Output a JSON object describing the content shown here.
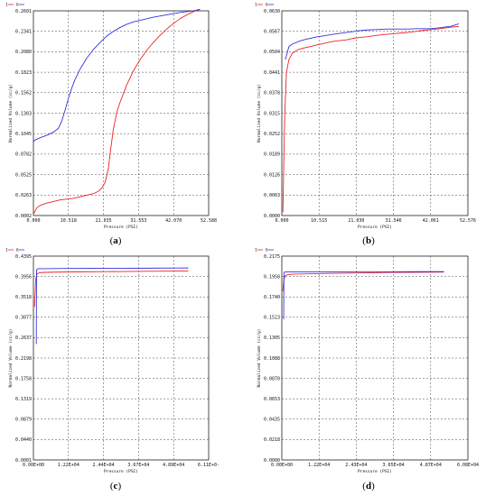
{
  "chart_data": [
    {
      "type": "line",
      "caption": "(a)",
      "xlabel": "Pressure (PSI)",
      "ylabel": "Normalized Volume (cc/g)",
      "xticks": [
        "0.000",
        "10.518",
        "21.035",
        "31.553",
        "42.070",
        "52.588"
      ],
      "yticks": [
        "0.0002",
        "0.0263",
        "0.0525",
        "0.0782",
        "0.1045",
        "0.1303",
        "0.1562",
        "0.1823",
        "0.2080",
        "0.2341",
        "0.2601"
      ],
      "xlim": [
        0,
        52.588
      ],
      "ylim": [
        0.0002,
        0.2601
      ],
      "legend": [
        "1",
        "6"
      ],
      "series": [
        {
          "name": "1",
          "color": "#ee2222",
          "x": [
            0,
            1,
            2,
            4,
            6,
            8,
            10,
            12,
            14,
            16,
            18,
            19.5,
            20.5,
            21.5,
            22.5,
            23.2,
            24,
            25,
            26,
            27,
            28,
            30,
            32,
            34,
            36,
            38,
            40,
            42,
            44,
            46,
            48,
            50
          ],
          "y": [
            0.002,
            0.01,
            0.013,
            0.016,
            0.018,
            0.02,
            0.021,
            0.022,
            0.024,
            0.026,
            0.028,
            0.031,
            0.035,
            0.042,
            0.06,
            0.085,
            0.11,
            0.131,
            0.144,
            0.155,
            0.166,
            0.184,
            0.198,
            0.21,
            0.22,
            0.229,
            0.237,
            0.244,
            0.25,
            0.255,
            0.259,
            0.262
          ]
        },
        {
          "name": "6",
          "color": "#3333dd",
          "x": [
            0,
            0.5,
            2,
            4,
            6,
            7.5,
            8.5,
            9.5,
            10.5,
            11.5,
            12.5,
            14,
            16,
            18,
            20,
            22,
            24,
            26,
            28,
            30,
            33,
            36,
            40,
            44,
            48,
            50
          ],
          "y": [
            0.094,
            0.096,
            0.099,
            0.102,
            0.106,
            0.111,
            0.12,
            0.134,
            0.149,
            0.162,
            0.173,
            0.186,
            0.2,
            0.211,
            0.22,
            0.228,
            0.234,
            0.239,
            0.243,
            0.246,
            0.249,
            0.252,
            0.255,
            0.258,
            0.26,
            0.262
          ]
        }
      ]
    },
    {
      "type": "line",
      "caption": "(b)",
      "xlabel": "Pressure (PSI)",
      "ylabel": "Normalized Volume (cc/g)",
      "xticks": [
        "0.000",
        "10.515",
        "21.030",
        "31.546",
        "42.061",
        "52.576"
      ],
      "yticks": [
        "0.0000",
        "0.0063",
        "0.0126",
        "0.0189",
        "0.0252",
        "0.0315",
        "0.0378",
        "0.0441",
        "0.0504",
        "0.0567",
        "0.0630"
      ],
      "xlim": [
        0,
        52.576
      ],
      "ylim": [
        0,
        0.063
      ],
      "legend": [
        "1",
        "6"
      ],
      "series": [
        {
          "name": "1",
          "color": "#ee2222",
          "x": [
            0.3,
            0.8,
            1.3,
            2,
            3,
            4.5,
            6,
            8,
            10,
            12,
            14,
            16,
            18,
            20,
            22,
            24,
            26,
            28,
            30,
            32,
            34,
            36,
            38,
            40,
            42,
            44,
            46,
            48,
            50
          ],
          "y": [
            0.001,
            0.03,
            0.044,
            0.048,
            0.05,
            0.051,
            0.0515,
            0.052,
            0.0525,
            0.053,
            0.0535,
            0.0538,
            0.054,
            0.0545,
            0.0548,
            0.055,
            0.0553,
            0.0556,
            0.0558,
            0.056,
            0.0562,
            0.0564,
            0.0567,
            0.057,
            0.0572,
            0.0574,
            0.0577,
            0.058,
            0.0582
          ]
        },
        {
          "name": "6",
          "color": "#3333dd",
          "x": [
            1,
            1.5,
            2,
            3,
            4,
            5,
            6,
            7,
            8,
            9,
            10,
            12,
            14,
            16,
            18,
            20,
            22,
            24,
            26,
            28,
            30,
            32,
            34,
            36,
            38,
            40,
            42,
            44,
            46,
            48,
            50
          ],
          "y": [
            0.048,
            0.05,
            0.052,
            0.0528,
            0.0532,
            0.0537,
            0.054,
            0.0543,
            0.0545,
            0.0548,
            0.055,
            0.0553,
            0.0557,
            0.056,
            0.0563,
            0.0566,
            0.0569,
            0.0571,
            0.0572,
            0.0573,
            0.0574,
            0.0574,
            0.0574,
            0.0574,
            0.0575,
            0.0575,
            0.0575,
            0.0577,
            0.058,
            0.0583,
            0.059
          ]
        }
      ]
    },
    {
      "type": "line",
      "caption": "(c)",
      "xlabel": "Pressure (PSI)",
      "ylabel": "Normalized Volume (cc/g)",
      "xticks": [
        "0.00E+00",
        "1.22E+04",
        "2.44E+04",
        "3.67E+04",
        "4.89E+04",
        "6.11E+0-"
      ],
      "yticks": [
        "0.0001",
        "0.0440",
        "0.0879",
        "0.1319",
        "0.1758",
        "0.2198",
        "0.2637",
        "0.3077",
        "0.3518",
        "0.3956",
        "0.4395"
      ],
      "xlim": [
        0,
        61100
      ],
      "ylim": [
        0.0001,
        0.4395
      ],
      "legend": [
        "1",
        "6"
      ],
      "series": [
        {
          "name": "1",
          "color": "#ee2222",
          "x": [
            400,
            800,
            1200,
            1800,
            2600,
            4000,
            8000,
            15000,
            25000,
            35000,
            45000,
            54000
          ],
          "y": [
            0.33,
            0.39,
            0.4005,
            0.403,
            0.404,
            0.4045,
            0.405,
            0.4055,
            0.406,
            0.4065,
            0.407,
            0.4075
          ]
        },
        {
          "name": "6",
          "color": "#3333dd",
          "x": [
            1000,
            1100,
            1400,
            2000,
            4000,
            10000,
            20000,
            30000,
            40000,
            50000,
            54000
          ],
          "y": [
            0.25,
            0.41,
            0.412,
            0.4125,
            0.4125,
            0.4128,
            0.413,
            0.4132,
            0.4135,
            0.4138,
            0.414
          ]
        }
      ]
    },
    {
      "type": "line",
      "caption": "(d)",
      "xlabel": "Pressure (PSI)",
      "ylabel": "Normalized Volume (cc/g)",
      "xticks": [
        "0.00E+00",
        "1.22E+04",
        "2.43E+04",
        "3.65E+04",
        "4.87E+04",
        "6.08E+04"
      ],
      "yticks": [
        "0.0000",
        "0.0218",
        "0.0435",
        "0.0653",
        "0.0870",
        "0.1088",
        "0.1305",
        "0.1523",
        "0.1740",
        "0.1958",
        "0.2175"
      ],
      "xlim": [
        0,
        60800
      ],
      "ylim": [
        0,
        0.2175
      ],
      "legend": [
        "1",
        "6"
      ],
      "series": [
        {
          "name": "1",
          "color": "#ee2222",
          "x": [
            300,
            700,
            1100,
            1700,
            2600,
            4000,
            8000,
            15000,
            25000,
            35000,
            45000,
            53000
          ],
          "y": [
            0.18,
            0.193,
            0.1965,
            0.1975,
            0.198,
            0.1983,
            0.1986,
            0.199,
            0.1995,
            0.2,
            0.2003,
            0.2005
          ]
        },
        {
          "name": "6",
          "color": "#3333dd",
          "x": [
            600,
            700,
            1000,
            1600,
            3000,
            8000,
            15000,
            25000,
            35000,
            45000,
            53000
          ],
          "y": [
            0.15,
            0.2,
            0.2005,
            0.2006,
            0.2006,
            0.2007,
            0.2007,
            0.2008,
            0.2008,
            0.2009,
            0.201
          ]
        }
      ]
    }
  ]
}
